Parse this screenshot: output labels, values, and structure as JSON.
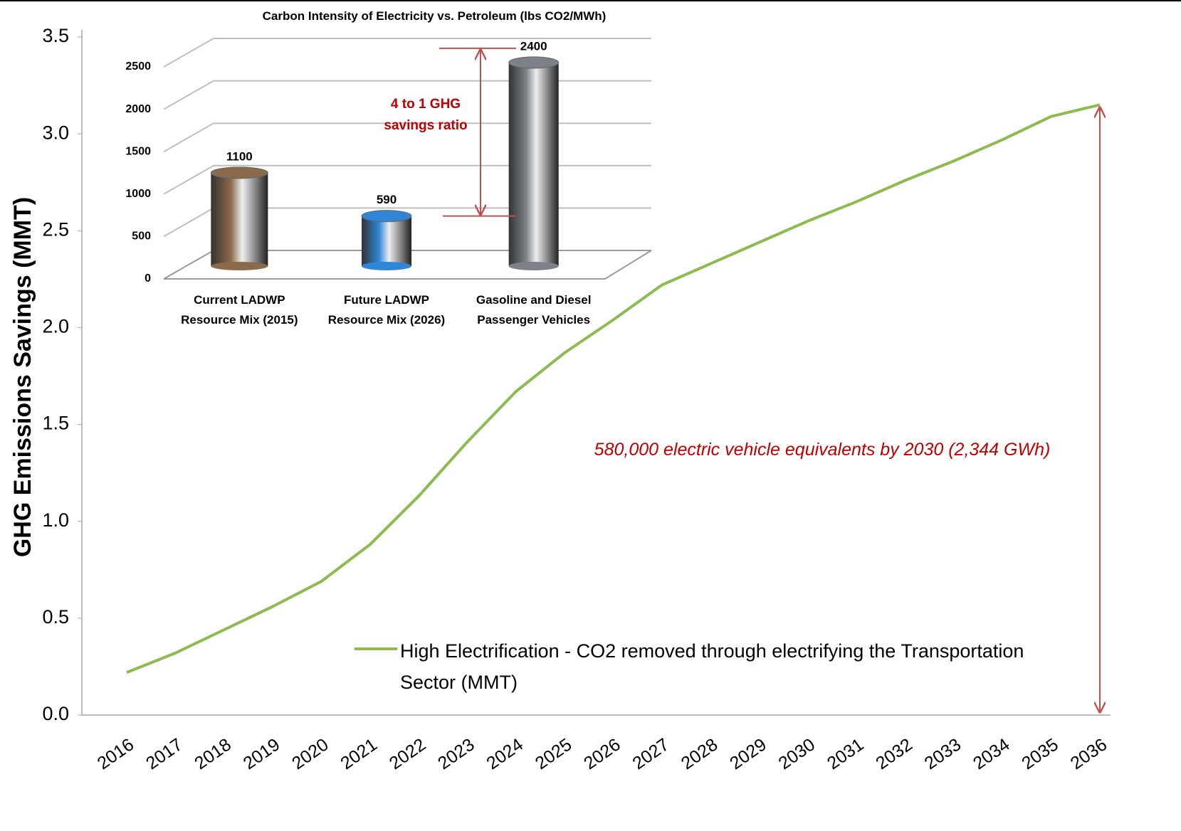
{
  "chart_data": [
    {
      "type": "line",
      "y_label": "GHG Emissions Savings (MMT)",
      "categories": [
        "2016",
        "2017",
        "2018",
        "2019",
        "2020",
        "2021",
        "2022",
        "2023",
        "2024",
        "2025",
        "2026",
        "2027",
        "2028",
        "2029",
        "2030",
        "2031",
        "2032",
        "2033",
        "2034",
        "2035",
        "2036"
      ],
      "series": [
        {
          "name": "High Electrification - CO2 removed through electrifying the Transportation Sector (MMT)",
          "color": "#8dbb4f",
          "values": [
            0.22,
            0.32,
            0.44,
            0.56,
            0.69,
            0.88,
            1.13,
            1.41,
            1.67,
            1.87,
            2.04,
            2.22,
            2.33,
            2.44,
            2.55,
            2.65,
            2.76,
            2.86,
            2.97,
            3.09,
            3.15
          ]
        }
      ],
      "ylim": [
        0,
        3.5
      ],
      "yticks": [
        {
          "value": 0,
          "label": "0.0"
        },
        0.5,
        {
          "value": 1,
          "label": "1.0"
        },
        1.5,
        {
          "value": 2,
          "label": "2.0"
        },
        2.5,
        {
          "value": 3,
          "label": "3.0"
        },
        3.5
      ],
      "annotation": "580,000 electric vehicle equivalents by 2030 (2,344 GWh)"
    },
    {
      "type": "bar",
      "title": "Carbon Intensity of Electricity vs. Petroleum (lbs CO2/MWh)",
      "categories": [
        "Current LADWP Resource Mix (2015)",
        "Future LADWP Resource Mix (2026)",
        "Gasoline and Diesel Passenger Vehicles"
      ],
      "values": [
        1100,
        590,
        2400
      ],
      "colors": [
        "#8a6a4a",
        "#2f86d6",
        "#7c8288"
      ],
      "ylim": [
        0,
        2500
      ],
      "yticks": [
        0,
        500,
        1000,
        1500,
        2000,
        2500
      ],
      "annotation": "4 to 1 GHG savings ratio"
    }
  ]
}
